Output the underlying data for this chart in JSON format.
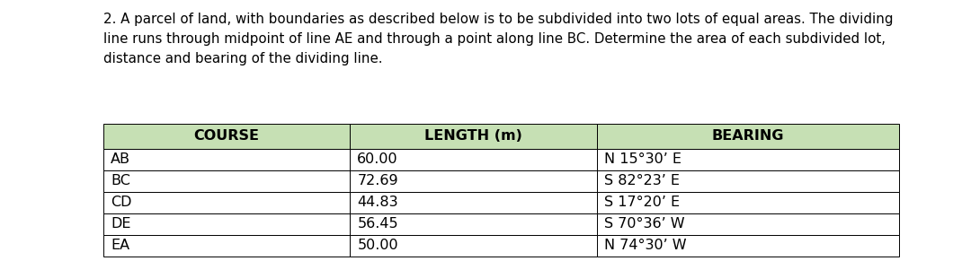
{
  "problem_text": "2. A parcel of land, with boundaries as described below is to be subdivided into two lots of equal areas. The dividing\nline runs through midpoint of line AE and through a point along line BC. Determine the area of each subdivided lot,\ndistance and bearing of the dividing line.",
  "header": [
    "COURSE",
    "LENGTH (m)",
    "BEARING"
  ],
  "rows": [
    [
      "AB",
      "60.00",
      "N 15°30’ E"
    ],
    [
      "BC",
      "72.69",
      "S 82°23’ E"
    ],
    [
      "CD",
      "44.83",
      "S 17°20’ E"
    ],
    [
      "DE",
      "56.45",
      "S 70°36’ W"
    ],
    [
      "EA",
      "50.00",
      "N 74°30’ W"
    ]
  ],
  "header_bg": "#c6e0b4",
  "header_text_color": "#000000",
  "row_bg": "#ffffff",
  "row_text_color": "#000000",
  "border_color": "#000000",
  "fig_bg": "#ffffff",
  "problem_fontsize": 10.8,
  "header_fontsize": 11.5,
  "row_fontsize": 11.5
}
